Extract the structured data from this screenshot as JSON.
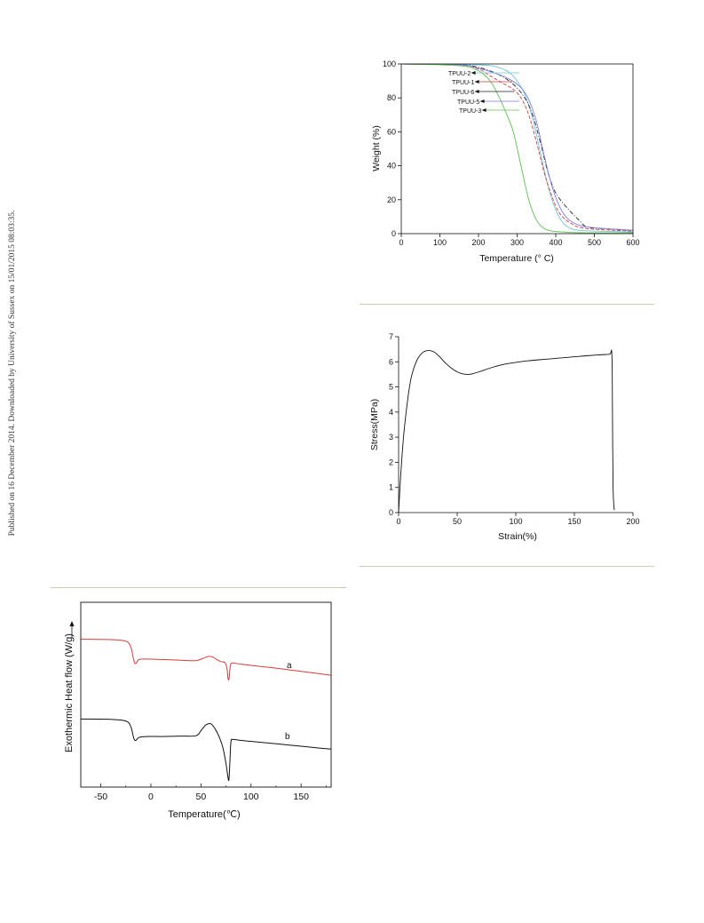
{
  "side_note": "Published on 16 December 2014. Downloaded by University of Sussex on 15/01/2015 08:03:35.",
  "colors": {
    "rule": "#cfc6b4",
    "tpuu2": "#6fc4d8",
    "tpuu1": "#d33c3c",
    "tpuu6": "#222222",
    "tpuu5": "#7d7de0",
    "tpuu3": "#5bbf4f",
    "dsc_a": "#d93a3a",
    "dsc_b": "#111111"
  },
  "chart_data": [
    {
      "type": "line",
      "xlabel": "Temperature (° C)",
      "ylabel": "Weight (%)",
      "xlim": [
        0,
        600
      ],
      "ylim": [
        0,
        100
      ],
      "xticks": [
        "0",
        "100",
        "200",
        "300",
        "400",
        "500",
        "600"
      ],
      "yticks": [
        "0",
        "20",
        "40",
        "60",
        "80",
        "100"
      ],
      "legend_placement": "inline-left, arrow labels",
      "series": [
        {
          "name": "TPUU-2",
          "x": [
            0,
            200,
            250,
            280,
            300,
            320,
            340,
            360,
            380,
            400,
            420,
            440,
            460,
            500,
            600
          ],
          "y": [
            100,
            99.5,
            98,
            95,
            90,
            82,
            68,
            48,
            28,
            14,
            6,
            3,
            2,
            1.5,
            1
          ]
        },
        {
          "name": "TPUU-1",
          "x": [
            0,
            150,
            200,
            230,
            260,
            290,
            310,
            330,
            350,
            370,
            390,
            410,
            440,
            480,
            600
          ],
          "y": [
            100,
            99.5,
            97,
            93,
            89,
            85,
            80,
            70,
            54,
            36,
            22,
            12,
            6,
            3,
            1.5
          ]
        },
        {
          "name": "TPUU-6",
          "x": [
            0,
            150,
            200,
            250,
            290,
            320,
            340,
            360,
            380,
            400,
            430,
            460,
            480,
            520,
            600
          ],
          "y": [
            100,
            99.5,
            98,
            94,
            88,
            80,
            70,
            54,
            36,
            24,
            15,
            8,
            4,
            3,
            2
          ]
        },
        {
          "name": "TPUU-5",
          "x": [
            0,
            150,
            200,
            250,
            280,
            310,
            330,
            350,
            370,
            390,
            410,
            430,
            460,
            500,
            600
          ],
          "y": [
            100,
            99.5,
            97.5,
            94,
            91,
            86,
            79,
            66,
            46,
            28,
            16,
            9,
            5,
            3.5,
            2
          ]
        },
        {
          "name": "TPUU-3",
          "x": [
            0,
            150,
            200,
            230,
            250,
            270,
            290,
            310,
            330,
            350,
            370,
            390,
            420,
            460,
            600
          ],
          "y": [
            100,
            99,
            96,
            90,
            82,
            72,
            60,
            40,
            20,
            8,
            3,
            1.5,
            1,
            0.5,
            0.5
          ]
        }
      ]
    },
    {
      "type": "line",
      "xlabel": "Strain(%)",
      "ylabel": "Stress(MPa)",
      "xlim": [
        0,
        200
      ],
      "ylim": [
        0,
        7
      ],
      "xticks": [
        "0",
        "50",
        "100",
        "150",
        "200"
      ],
      "yticks": [
        "0",
        "1",
        "2",
        "3",
        "4",
        "5",
        "6",
        "7"
      ],
      "series": [
        {
          "name": "",
          "x": [
            0,
            2,
            5,
            10,
            15,
            20,
            25,
            30,
            35,
            40,
            45,
            50,
            55,
            60,
            65,
            70,
            80,
            90,
            100,
            110,
            120,
            130,
            140,
            150,
            160,
            170,
            180,
            182,
            182.5,
            183,
            184
          ],
          "y": [
            0,
            1.6,
            3.4,
            5.2,
            6.0,
            6.35,
            6.45,
            6.4,
            6.2,
            5.95,
            5.75,
            5.6,
            5.52,
            5.5,
            5.55,
            5.62,
            5.78,
            5.9,
            5.98,
            6.04,
            6.08,
            6.12,
            6.16,
            6.2,
            6.24,
            6.27,
            6.3,
            6.3,
            4.0,
            1.0,
            0.1
          ]
        }
      ]
    },
    {
      "type": "line",
      "xlabel": "Temperature(℃)",
      "ylabel": "Exothermic Heat flow (W/g)",
      "xlim": [
        -70,
        180
      ],
      "yticks_shown": false,
      "xticks": [
        "-50",
        "0",
        "50",
        "100",
        "150"
      ],
      "annotations": [
        "a",
        "b"
      ],
      "series": [
        {
          "name": "a",
          "x": [
            -70,
            -40,
            -25,
            -20,
            -17,
            -15,
            -12,
            -5,
            10,
            30,
            45,
            52,
            58,
            62,
            66,
            70,
            74,
            76,
            77,
            78,
            79,
            80,
            82,
            90,
            110,
            130,
            150,
            165,
            180
          ],
          "y": [
            7.6,
            7.58,
            7.5,
            7.2,
            6.5,
            6.35,
            6.55,
            6.58,
            6.56,
            6.52,
            6.5,
            6.62,
            6.72,
            6.68,
            6.55,
            6.45,
            6.4,
            6.1,
            5.6,
            5.55,
            6.1,
            6.35,
            6.38,
            6.32,
            6.2,
            6.08,
            5.95,
            5.85,
            5.75
          ]
        },
        {
          "name": "b",
          "x": [
            -70,
            -40,
            -25,
            -20,
            -17,
            -15,
            -12,
            -5,
            10,
            30,
            45,
            50,
            55,
            60,
            64,
            68,
            72,
            75,
            77,
            78,
            79,
            80,
            82,
            90,
            110,
            130,
            150,
            165,
            180
          ],
          "y": [
            3.5,
            3.48,
            3.4,
            3.1,
            2.5,
            2.4,
            2.55,
            2.6,
            2.6,
            2.62,
            2.64,
            2.9,
            3.2,
            3.25,
            3.0,
            2.6,
            2.0,
            1.2,
            0.5,
            0.4,
            1.4,
            2.35,
            2.45,
            2.4,
            2.3,
            2.2,
            2.1,
            2.02,
            1.95
          ]
        }
      ]
    }
  ]
}
